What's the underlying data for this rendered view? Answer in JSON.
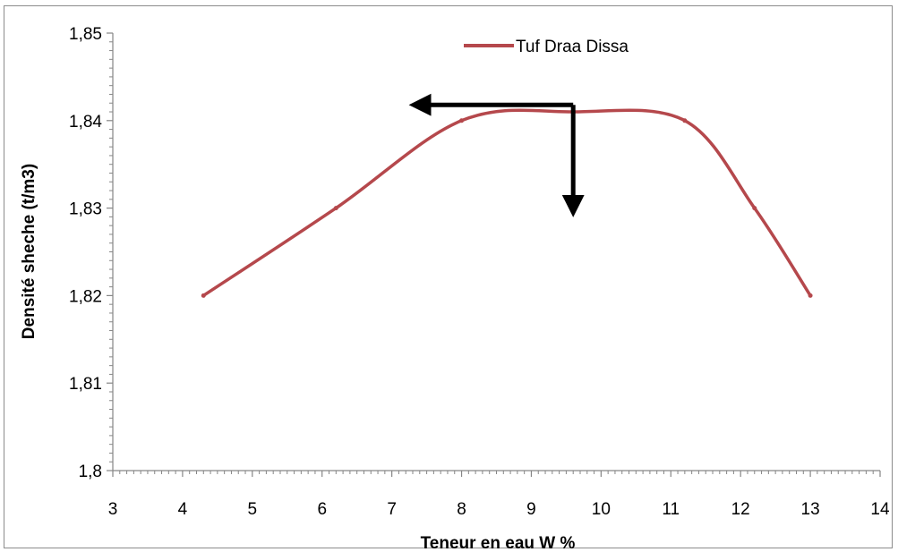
{
  "chart_data": {
    "type": "line",
    "title": "",
    "xlabel": "Teneur  en eau W %",
    "ylabel": "Densité sheche (t/m3)",
    "xlim": [
      3,
      14
    ],
    "ylim": [
      1.8,
      1.85
    ],
    "xticks": [
      "3",
      "4",
      "5",
      "6",
      "7",
      "8",
      "9",
      "10",
      "11",
      "12",
      "13",
      "14"
    ],
    "yticks": [
      "1,8",
      "1,81",
      "1,82",
      "1,83",
      "1,84",
      "1,85"
    ],
    "grid": false,
    "legend_position": "top-right",
    "series": [
      {
        "name": "Tuf Draa Dissa",
        "color": "#b5484c",
        "x": [
          4.3,
          6.2,
          8.0,
          9.6,
          11.2,
          12.2,
          13.0
        ],
        "y": [
          1.82,
          1.83,
          1.84,
          1.841,
          1.84,
          1.83,
          1.82
        ]
      }
    ],
    "annotations": [
      {
        "type": "arrow",
        "direction": "left",
        "from": [
          9.6,
          1.8418
        ],
        "to": [
          7.5,
          1.8418
        ],
        "color": "#000000"
      },
      {
        "type": "arrow",
        "direction": "down",
        "from": [
          9.6,
          1.8418
        ],
        "to": [
          9.6,
          1.831
        ],
        "color": "#000000"
      }
    ]
  }
}
